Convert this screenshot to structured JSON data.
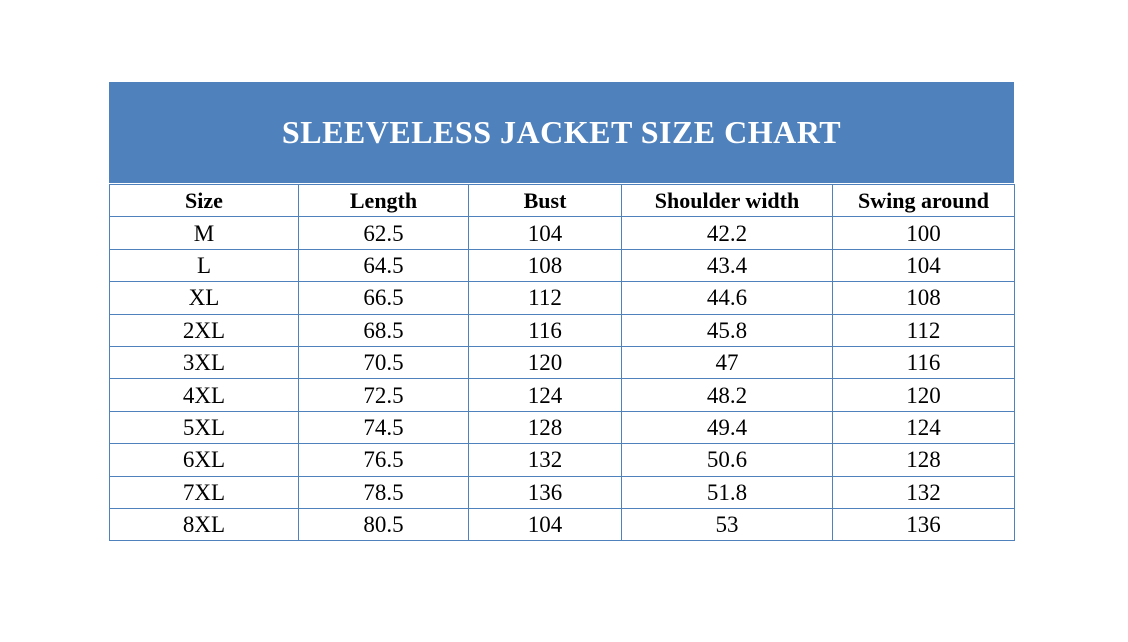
{
  "title": "SLEEVELESS JACKET SIZE CHART",
  "colors": {
    "header_band": "#4f81bd",
    "grid": "#4f81bd"
  },
  "columns": [
    "Size",
    "Length",
    "Bust",
    "Shoulder width",
    "Swing around"
  ],
  "rows": [
    [
      "M",
      "62.5",
      "104",
      "42.2",
      "100"
    ],
    [
      "L",
      "64.5",
      "108",
      "43.4",
      "104"
    ],
    [
      "XL",
      "66.5",
      "112",
      "44.6",
      "108"
    ],
    [
      "2XL",
      "68.5",
      "116",
      "45.8",
      "112"
    ],
    [
      "3XL",
      "70.5",
      "120",
      "47",
      "116"
    ],
    [
      "4XL",
      "72.5",
      "124",
      "48.2",
      "120"
    ],
    [
      "5XL",
      "74.5",
      "128",
      "49.4",
      "124"
    ],
    [
      "6XL",
      "76.5",
      "132",
      "50.6",
      "128"
    ],
    [
      "7XL",
      "78.5",
      "136",
      "51.8",
      "132"
    ],
    [
      "8XL",
      "80.5",
      "104",
      "53",
      "136"
    ]
  ]
}
